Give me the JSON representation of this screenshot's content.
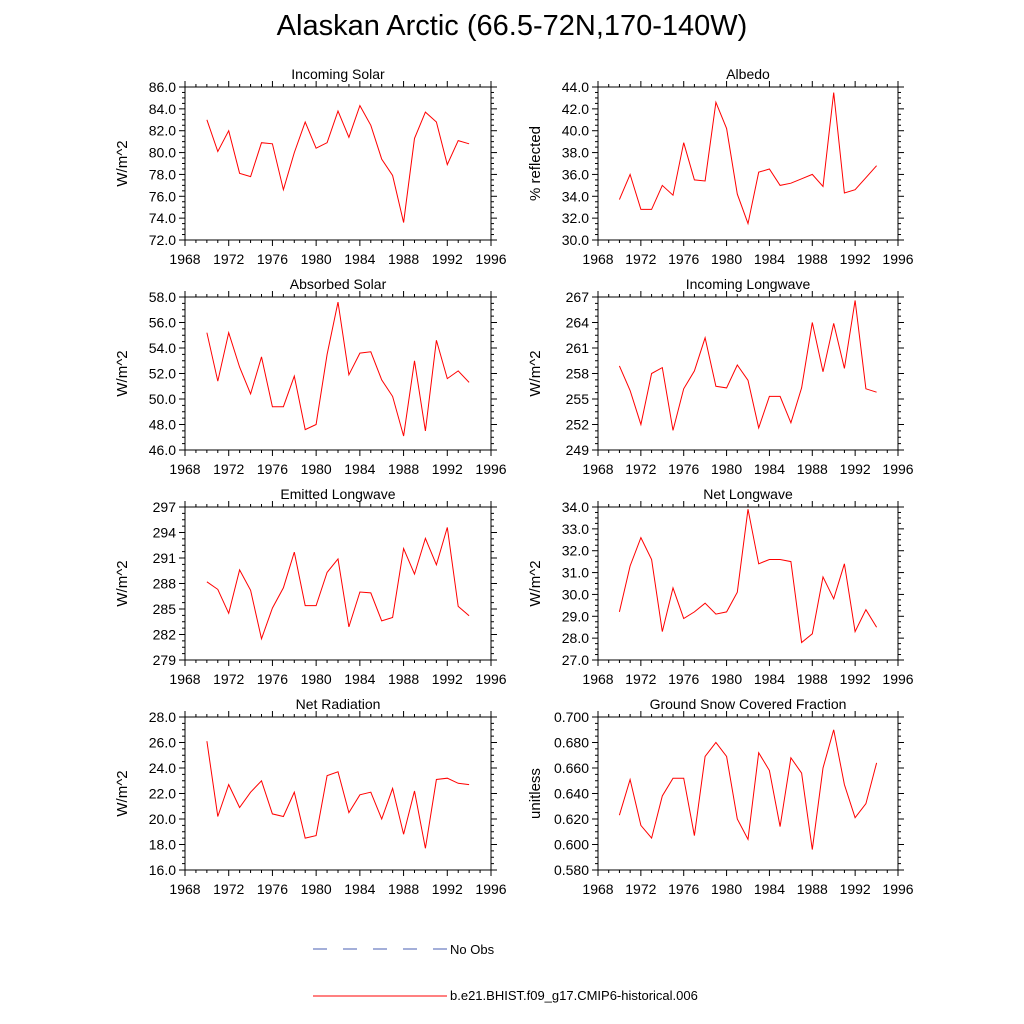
{
  "title": "Alaskan Arctic (66.5-72N,170-140W)",
  "legend": {
    "obs_label": "No Obs",
    "model_label": "b.e21.BHIST.f09_g17.CMIP6-historical.006",
    "obs_color": "#4a5fb3",
    "model_color": "#ff0000"
  },
  "chart_data": [
    {
      "type": "line",
      "title": "Incoming Solar",
      "ylabel": "W/m^2",
      "ylim": [
        72,
        86
      ],
      "yticks": [
        72,
        74,
        76,
        78,
        80,
        82,
        84,
        86
      ],
      "ytick_labels": [
        "72.0",
        "74.0",
        "76.0",
        "78.0",
        "80.0",
        "82.0",
        "84.0",
        "86.0"
      ],
      "xlim": [
        1968,
        1996
      ],
      "xticks": [
        1968,
        1972,
        1976,
        1980,
        1984,
        1988,
        1992,
        1996
      ],
      "xtick_labels": [
        "1968",
        "1972",
        "1976",
        "1980",
        "1984",
        "1988",
        "1992",
        "1996"
      ],
      "x": [
        1970,
        1971,
        1972,
        1973,
        1974,
        1975,
        1976,
        1977,
        1978,
        1979,
        1980,
        1981,
        1982,
        1983,
        1984,
        1985,
        1986,
        1987,
        1988,
        1989,
        1990,
        1991,
        1992,
        1993,
        1994
      ],
      "series": [
        {
          "values": [
            83.0,
            80.1,
            82.0,
            78.1,
            77.8,
            80.9,
            80.8,
            76.6,
            80.0,
            82.8,
            80.4,
            80.9,
            83.8,
            81.4,
            84.3,
            82.5,
            79.4,
            77.9,
            73.6,
            81.3,
            83.7,
            82.8,
            78.9,
            81.1,
            80.8
          ]
        }
      ]
    },
    {
      "type": "line",
      "title": "Albedo",
      "ylabel": "% reflected",
      "ylim": [
        30,
        44
      ],
      "yticks": [
        30,
        32,
        34,
        36,
        38,
        40,
        42,
        44
      ],
      "ytick_labels": [
        "30.0",
        "32.0",
        "34.0",
        "36.0",
        "38.0",
        "40.0",
        "42.0",
        "44.0"
      ],
      "xlim": [
        1968,
        1996
      ],
      "xticks": [
        1968,
        1972,
        1976,
        1980,
        1984,
        1988,
        1992,
        1996
      ],
      "xtick_labels": [
        "1968",
        "1972",
        "1976",
        "1980",
        "1984",
        "1988",
        "1992",
        "1996"
      ],
      "x": [
        1970,
        1971,
        1972,
        1973,
        1974,
        1975,
        1976,
        1977,
        1978,
        1979,
        1980,
        1981,
        1982,
        1983,
        1984,
        1985,
        1986,
        1987,
        1988,
        1989,
        1990,
        1991,
        1992,
        1993,
        1994
      ],
      "series": [
        {
          "values": [
            33.7,
            36.0,
            32.8,
            32.8,
            35.0,
            34.1,
            38.9,
            35.5,
            35.4,
            42.6,
            40.2,
            34.2,
            31.5,
            36.2,
            36.5,
            35.0,
            35.2,
            35.6,
            36.0,
            34.9,
            43.5,
            34.3,
            34.6,
            35.7,
            36.8
          ]
        }
      ]
    },
    {
      "type": "line",
      "title": "Absorbed Solar",
      "ylabel": "W/m^2",
      "ylim": [
        46,
        58
      ],
      "yticks": [
        46,
        48,
        50,
        52,
        54,
        56,
        58
      ],
      "ytick_labels": [
        "46.0",
        "48.0",
        "50.0",
        "52.0",
        "54.0",
        "56.0",
        "58.0"
      ],
      "xlim": [
        1968,
        1996
      ],
      "xticks": [
        1968,
        1972,
        1976,
        1980,
        1984,
        1988,
        1992,
        1996
      ],
      "xtick_labels": [
        "1968",
        "1972",
        "1976",
        "1980",
        "1984",
        "1988",
        "1992",
        "1996"
      ],
      "x": [
        1970,
        1971,
        1972,
        1973,
        1974,
        1975,
        1976,
        1977,
        1978,
        1979,
        1980,
        1981,
        1982,
        1983,
        1984,
        1985,
        1986,
        1987,
        1988,
        1989,
        1990,
        1991,
        1992,
        1993,
        1994
      ],
      "series": [
        {
          "values": [
            55.2,
            51.4,
            55.2,
            52.5,
            50.4,
            53.3,
            49.4,
            49.4,
            51.8,
            47.6,
            48.0,
            53.5,
            57.6,
            51.9,
            53.6,
            53.7,
            51.5,
            50.2,
            47.1,
            53.0,
            47.5,
            54.6,
            51.6,
            52.2,
            51.3
          ]
        }
      ]
    },
    {
      "type": "line",
      "title": "Incoming Longwave",
      "ylabel": "W/m^2",
      "ylim": [
        249,
        267
      ],
      "yticks": [
        249,
        252,
        255,
        258,
        261,
        264,
        267
      ],
      "ytick_labels": [
        "249",
        "252",
        "255",
        "258",
        "261",
        "264",
        "267"
      ],
      "xlim": [
        1968,
        1996
      ],
      "xticks": [
        1968,
        1972,
        1976,
        1980,
        1984,
        1988,
        1992,
        1996
      ],
      "xtick_labels": [
        "1968",
        "1972",
        "1976",
        "1980",
        "1984",
        "1988",
        "1992",
        "1996"
      ],
      "x": [
        1970,
        1971,
        1972,
        1973,
        1974,
        1975,
        1976,
        1977,
        1978,
        1979,
        1980,
        1981,
        1982,
        1983,
        1984,
        1985,
        1986,
        1987,
        1988,
        1989,
        1990,
        1991,
        1992,
        1993,
        1994
      ],
      "series": [
        {
          "values": [
            258.9,
            256.0,
            252.0,
            258.0,
            258.7,
            251.3,
            256.2,
            258.3,
            262.2,
            256.5,
            256.3,
            259.0,
            257.2,
            251.6,
            255.3,
            255.3,
            252.2,
            256.3,
            264.0,
            258.2,
            263.9,
            258.6,
            266.6,
            256.2,
            255.8
          ]
        }
      ]
    },
    {
      "type": "line",
      "title": "Emitted Longwave",
      "ylabel": "W/m^2",
      "ylim": [
        279,
        297
      ],
      "yticks": [
        279,
        282,
        285,
        288,
        291,
        294,
        297
      ],
      "ytick_labels": [
        "279",
        "282",
        "285",
        "288",
        "291",
        "294",
        "297"
      ],
      "xlim": [
        1968,
        1996
      ],
      "xticks": [
        1968,
        1972,
        1976,
        1980,
        1984,
        1988,
        1992,
        1996
      ],
      "xtick_labels": [
        "1968",
        "1972",
        "1976",
        "1980",
        "1984",
        "1988",
        "1992",
        "1996"
      ],
      "x": [
        1970,
        1971,
        1972,
        1973,
        1974,
        1975,
        1976,
        1977,
        1978,
        1979,
        1980,
        1981,
        1982,
        1983,
        1984,
        1985,
        1986,
        1987,
        1988,
        1989,
        1990,
        1991,
        1992,
        1993,
        1994
      ],
      "series": [
        {
          "values": [
            288.2,
            287.3,
            284.5,
            289.6,
            287.2,
            281.5,
            285.1,
            287.5,
            291.7,
            285.4,
            285.4,
            289.3,
            290.9,
            282.9,
            287.0,
            286.9,
            283.6,
            284.0,
            292.1,
            289.1,
            293.3,
            290.2,
            294.6,
            285.3,
            284.2
          ]
        }
      ]
    },
    {
      "type": "line",
      "title": "Net Longwave",
      "ylabel": "W/m^2",
      "ylim": [
        27,
        34
      ],
      "yticks": [
        27,
        28,
        29,
        30,
        31,
        32,
        33,
        34
      ],
      "ytick_labels": [
        "27.0",
        "28.0",
        "29.0",
        "30.0",
        "31.0",
        "32.0",
        "33.0",
        "34.0"
      ],
      "xlim": [
        1968,
        1996
      ],
      "xticks": [
        1968,
        1972,
        1976,
        1980,
        1984,
        1988,
        1992,
        1996
      ],
      "xtick_labels": [
        "1968",
        "1972",
        "1976",
        "1980",
        "1984",
        "1988",
        "1992",
        "1996"
      ],
      "x": [
        1970,
        1971,
        1972,
        1973,
        1974,
        1975,
        1976,
        1977,
        1978,
        1979,
        1980,
        1981,
        1982,
        1983,
        1984,
        1985,
        1986,
        1987,
        1988,
        1989,
        1990,
        1991,
        1992,
        1993,
        1994
      ],
      "series": [
        {
          "values": [
            29.2,
            31.3,
            32.6,
            31.6,
            28.3,
            30.3,
            28.9,
            29.2,
            29.6,
            29.1,
            29.2,
            30.1,
            33.9,
            31.4,
            31.6,
            31.6,
            31.5,
            27.8,
            28.2,
            30.8,
            29.8,
            31.4,
            28.3,
            29.3,
            28.5
          ]
        }
      ]
    },
    {
      "type": "line",
      "title": "Net Radiation",
      "ylabel": "W/m^2",
      "ylim": [
        16,
        28
      ],
      "yticks": [
        16,
        18,
        20,
        22,
        24,
        26,
        28
      ],
      "ytick_labels": [
        "16.0",
        "18.0",
        "20.0",
        "22.0",
        "24.0",
        "26.0",
        "28.0"
      ],
      "xlim": [
        1968,
        1996
      ],
      "xticks": [
        1968,
        1972,
        1976,
        1980,
        1984,
        1988,
        1992,
        1996
      ],
      "xtick_labels": [
        "1968",
        "1972",
        "1976",
        "1980",
        "1984",
        "1988",
        "1992",
        "1996"
      ],
      "x": [
        1970,
        1971,
        1972,
        1973,
        1974,
        1975,
        1976,
        1977,
        1978,
        1979,
        1980,
        1981,
        1982,
        1983,
        1984,
        1985,
        1986,
        1987,
        1988,
        1989,
        1990,
        1991,
        1992,
        1993,
        1994
      ],
      "series": [
        {
          "values": [
            26.1,
            20.2,
            22.7,
            20.9,
            22.1,
            23.0,
            20.4,
            20.2,
            22.1,
            18.5,
            18.7,
            23.4,
            23.7,
            20.5,
            21.9,
            22.1,
            20.0,
            22.4,
            18.8,
            22.2,
            17.7,
            23.1,
            23.2,
            22.8,
            22.7
          ]
        }
      ]
    },
    {
      "type": "line",
      "title": "Ground Snow Covered Fraction",
      "ylabel": "unitless",
      "ylim": [
        0.58,
        0.7
      ],
      "yticks": [
        0.58,
        0.6,
        0.62,
        0.64,
        0.66,
        0.68,
        0.7
      ],
      "ytick_labels": [
        "0.580",
        "0.600",
        "0.620",
        "0.640",
        "0.660",
        "0.680",
        "0.700"
      ],
      "xlim": [
        1968,
        1996
      ],
      "xticks": [
        1968,
        1972,
        1976,
        1980,
        1984,
        1988,
        1992,
        1996
      ],
      "xtick_labels": [
        "1968",
        "1972",
        "1976",
        "1980",
        "1984",
        "1988",
        "1992",
        "1996"
      ],
      "x": [
        1970,
        1971,
        1972,
        1973,
        1974,
        1975,
        1976,
        1977,
        1978,
        1979,
        1980,
        1981,
        1982,
        1983,
        1984,
        1985,
        1986,
        1987,
        1988,
        1989,
        1990,
        1991,
        1992,
        1993,
        1994
      ],
      "series": [
        {
          "values": [
            0.623,
            0.651,
            0.615,
            0.605,
            0.638,
            0.652,
            0.652,
            0.607,
            0.669,
            0.68,
            0.669,
            0.62,
            0.604,
            0.672,
            0.658,
            0.614,
            0.668,
            0.656,
            0.596,
            0.66,
            0.69,
            0.647,
            0.621,
            0.632,
            0.664
          ]
        }
      ]
    }
  ]
}
